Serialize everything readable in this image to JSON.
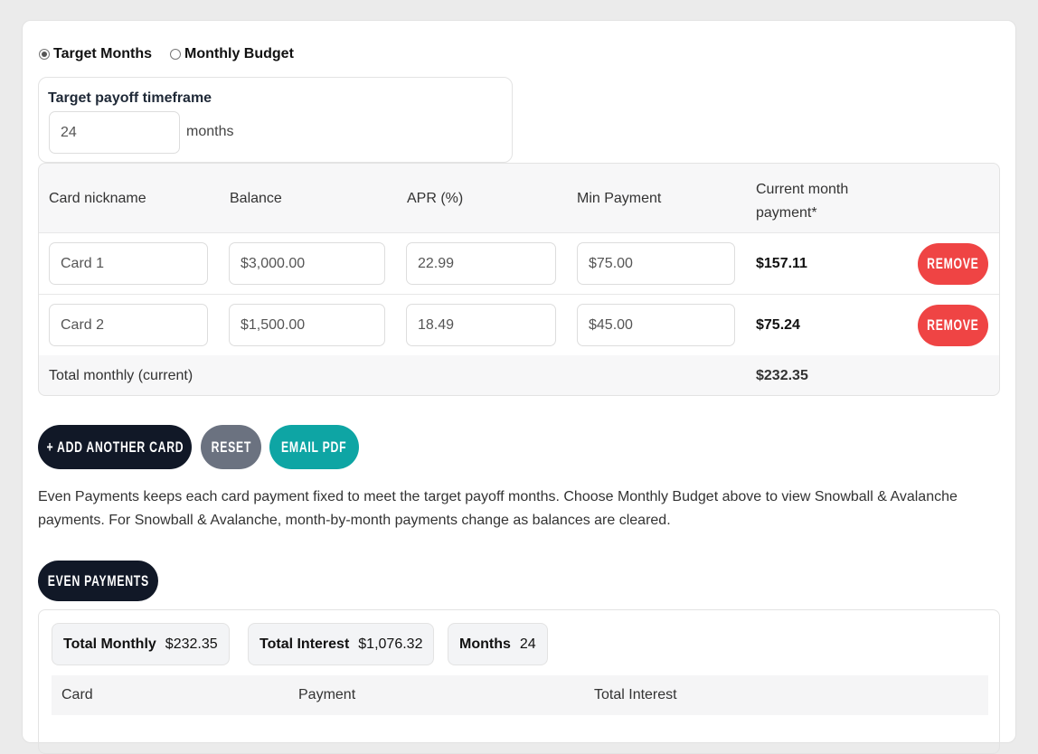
{
  "mode": {
    "options": [
      {
        "label": "Target Months",
        "selected": true
      },
      {
        "label": "Monthly Budget",
        "selected": false
      }
    ]
  },
  "target": {
    "label": "Target payoff timeframe",
    "value": "24",
    "unit": "months"
  },
  "table": {
    "headers": [
      "Card nickname",
      "Balance",
      "APR (%)",
      "Min Payment",
      "Current month payment*"
    ],
    "rows": [
      {
        "nickname": "Card 1",
        "balance": "$3,000.00",
        "apr": "22.99",
        "min_payment": "$75.00",
        "current_payment": "$157.11",
        "remove_label": "REMOVE"
      },
      {
        "nickname": "Card 2",
        "balance": "$1,500.00",
        "apr": "18.49",
        "min_payment": "$45.00",
        "current_payment": "$75.24",
        "remove_label": "REMOVE"
      }
    ],
    "total_label": "Total monthly (current)",
    "total_value": "$232.35"
  },
  "actions": {
    "add_card": "+ ADD ANOTHER CARD",
    "reset": "RESET",
    "email_pdf": "EMAIL PDF"
  },
  "note": "Even Payments keeps each card payment fixed to meet the target payoff months. Choose Monthly Budget above to view Snowball & Avalanche payments. For Snowball & Avalanche, month-by-month payments change as balances are cleared.",
  "strategy_tab": "EVEN PAYMENTS",
  "results": {
    "stats": [
      {
        "label": "Total Monthly",
        "value": "$232.35"
      },
      {
        "label": "Total Interest",
        "value": "$1,076.32"
      },
      {
        "label": "Months",
        "value": "24"
      }
    ],
    "headers": [
      "Card",
      "Payment",
      "Total Interest"
    ]
  },
  "colors": {
    "dark": "#111827",
    "gray": "#6b7280",
    "teal": "#0ea5a4",
    "red": "#ef4444"
  }
}
